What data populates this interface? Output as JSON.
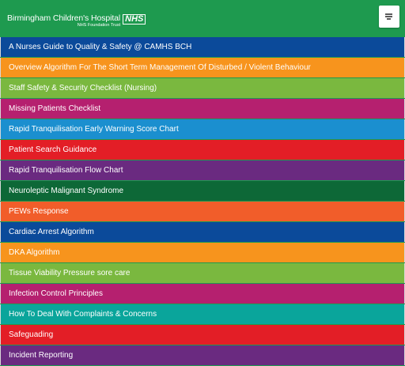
{
  "header": {
    "hospital_name": "Birmingham Children's Hospital",
    "trust_name": "NHS Foundation Trust",
    "nhs_badge": "NHS",
    "menu_icon": "hamburger-menu-icon"
  },
  "colors": {
    "header_background": "#1e9a4f"
  },
  "menu": {
    "items": [
      {
        "label": "A Nurses Guide to Quality & Safety @ CAMHS BCH",
        "color": "#0b4a9a"
      },
      {
        "label": "Overview Algorithm For The Short Term Management Of Disturbed / Violent Behaviour",
        "color": "#f7941d"
      },
      {
        "label": "Staff Safety & Security Checklist (Nursing)",
        "color": "#7ab83f"
      },
      {
        "label": "Missing Patients Checklist",
        "color": "#b5206f"
      },
      {
        "label": "Rapid Tranquilisation Early Warning Score Chart",
        "color": "#1b8fcf"
      },
      {
        "label": "Patient Search Guidance",
        "color": "#e31e26"
      },
      {
        "label": "Rapid Tranquilisation Flow Chart",
        "color": "#6a2a80"
      },
      {
        "label": "Neuroleptic Malignant Syndrome",
        "color": "#0d6837"
      },
      {
        "label": "PEWs Response",
        "color": "#f15d2a"
      },
      {
        "label": "Cardiac Arrest Algorithm",
        "color": "#0b4a9a"
      },
      {
        "label": "DKA Algorithm",
        "color": "#f7941d"
      },
      {
        "label": "Tissue Viability Pressure sore care",
        "color": "#7ab83f"
      },
      {
        "label": "Infection Control Principles",
        "color": "#b5206f"
      },
      {
        "label": "How To Deal With Complaints & Concerns",
        "color": "#0aa59b"
      },
      {
        "label": "Safeguading",
        "color": "#e31e26"
      },
      {
        "label": "Incident Reporting",
        "color": "#6a2a80"
      }
    ]
  }
}
